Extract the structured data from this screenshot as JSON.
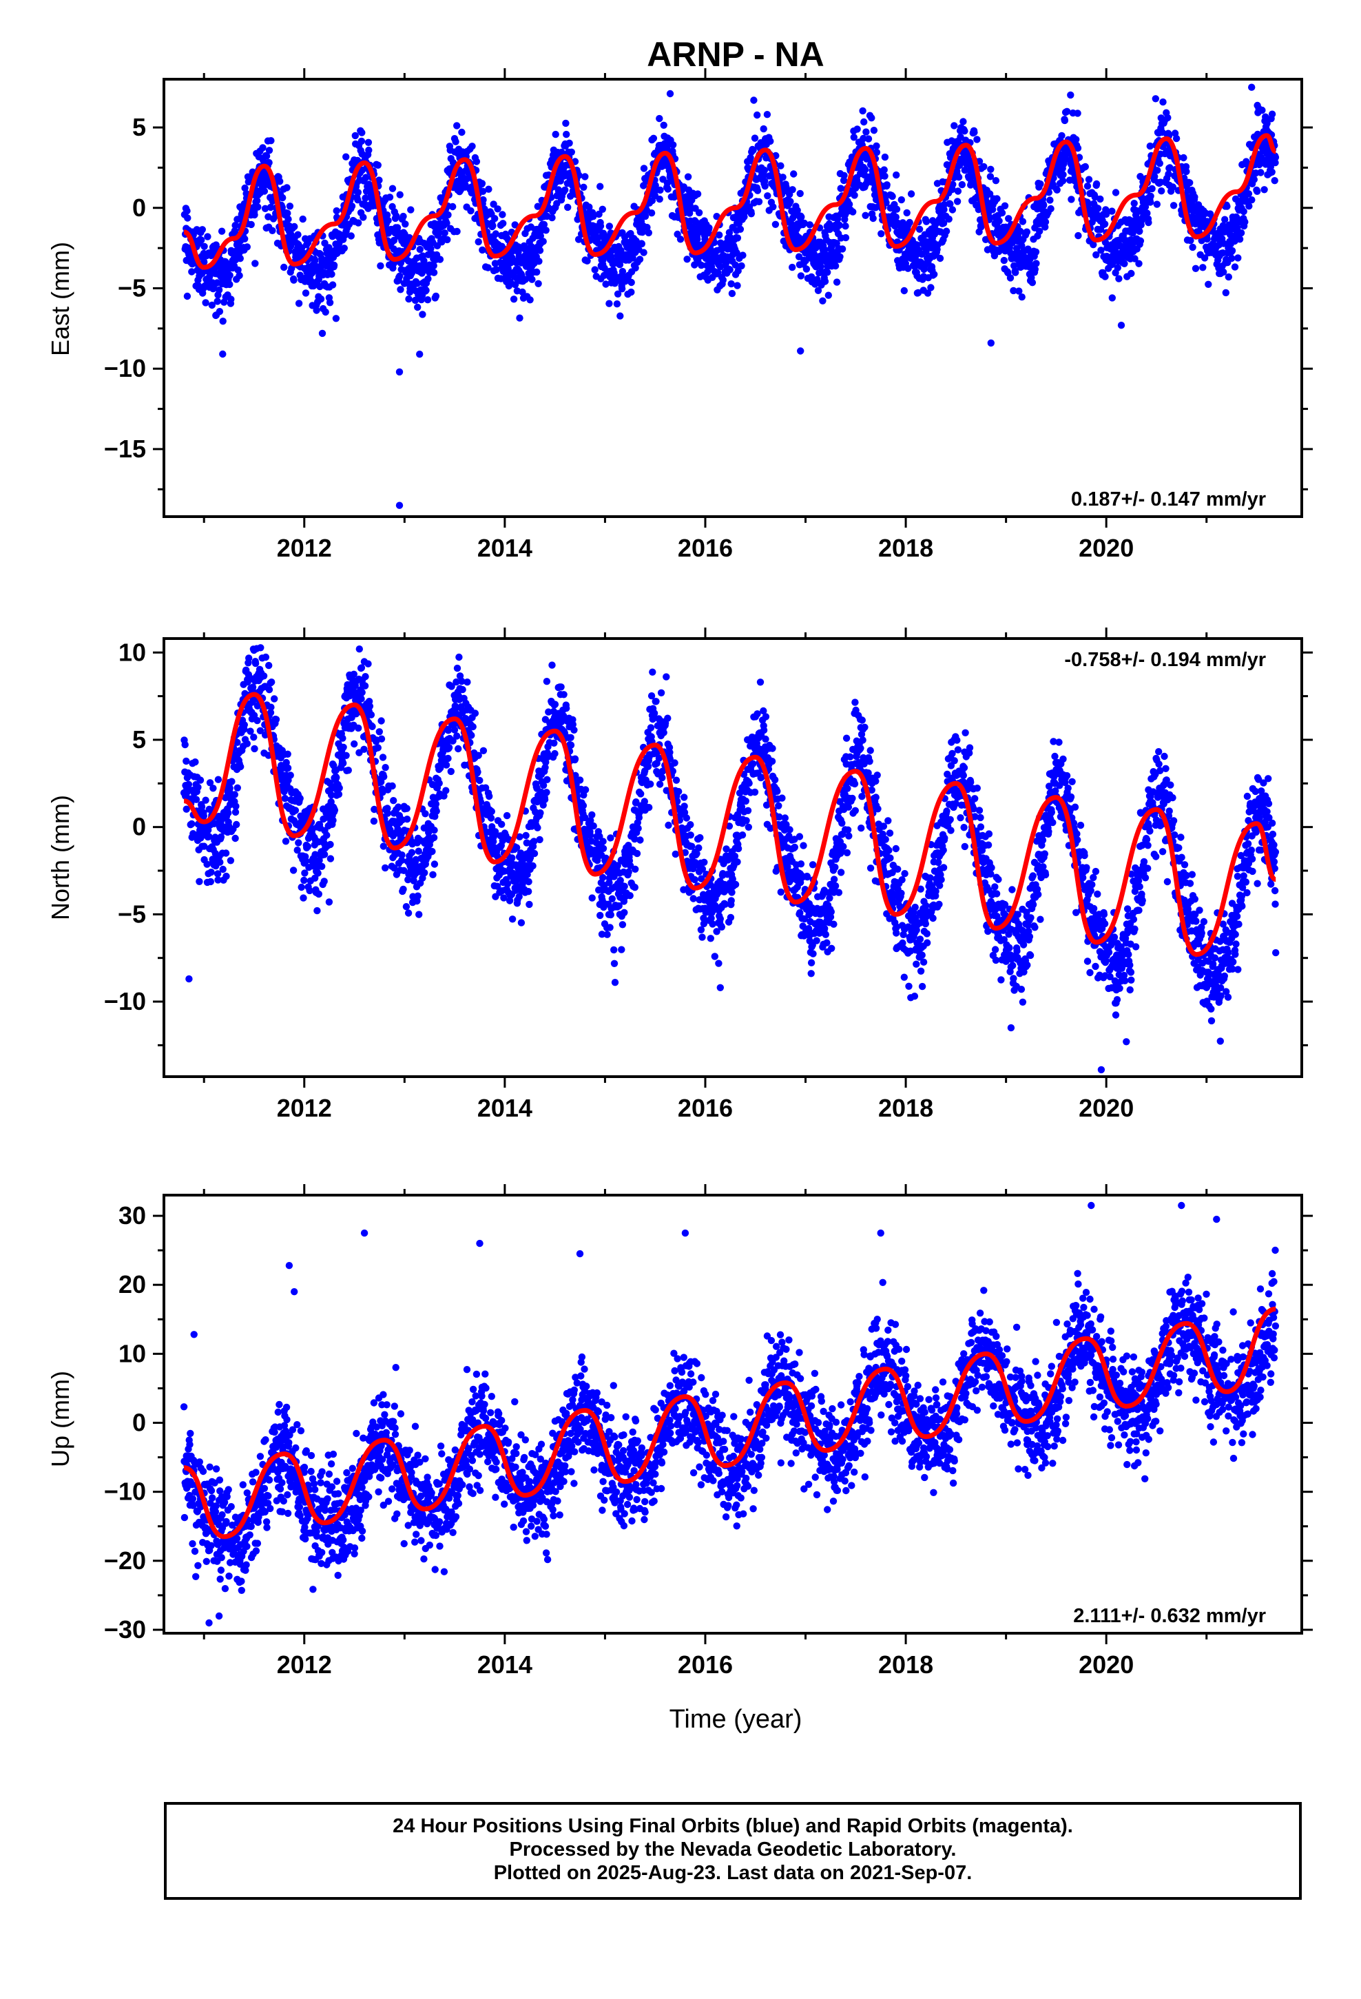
{
  "title": "ARNP - NA",
  "xlabel": "Time (year)",
  "caption": [
    "24 Hour Positions Using Final Orbits (blue) and Rapid Orbits (magenta).",
    "Processed by the Nevada Geodetic Laboratory.",
    "Plotted on 2025-Aug-23. Last data on 2021-Sep-07."
  ],
  "colors": {
    "points": "#0000ff",
    "fit": "#ff0000",
    "frame": "#000000"
  },
  "chart_data": [
    {
      "type": "scatter",
      "component": "east",
      "ylabel": "East (mm)",
      "rate_text": "0.187+/- 0.147 mm/yr",
      "rate_position": "bottom-right",
      "xlim": [
        2010.6,
        2021.95
      ],
      "ylim": [
        -19.2,
        8.0
      ],
      "xticks": [
        2012,
        2014,
        2016,
        2018,
        2020
      ],
      "yticks": [
        5,
        0,
        -5,
        -10,
        -15
      ],
      "data_start": 2010.8,
      "data_end": 2021.69,
      "model": {
        "offset": -0.6,
        "trend_mm_per_yr": 0.187,
        "t_ref": 2016.25,
        "annual_amp": 3.0,
        "annual_peak": 0.6,
        "semiannual_amp": 0.6,
        "noise_sd": 1.2
      },
      "fit_curve": [
        [
          2010.8,
          -1.5
        ],
        [
          2011.0,
          -3.7
        ],
        [
          2011.3,
          -1.9
        ],
        [
          2011.6,
          2.6
        ],
        [
          2011.9,
          -3.5
        ],
        [
          2012.3,
          -1.0
        ],
        [
          2012.6,
          2.8
        ],
        [
          2012.9,
          -3.2
        ],
        [
          2013.3,
          -0.5
        ],
        [
          2013.6,
          3.0
        ],
        [
          2013.9,
          -3.0
        ],
        [
          2014.3,
          -0.5
        ],
        [
          2014.6,
          3.2
        ],
        [
          2014.9,
          -2.9
        ],
        [
          2015.3,
          -0.3
        ],
        [
          2015.6,
          3.4
        ],
        [
          2015.9,
          -2.8
        ],
        [
          2016.3,
          0.0
        ],
        [
          2016.6,
          3.6
        ],
        [
          2016.9,
          -2.6
        ],
        [
          2017.3,
          0.2
        ],
        [
          2017.6,
          3.7
        ],
        [
          2017.9,
          -2.4
        ],
        [
          2018.3,
          0.4
        ],
        [
          2018.6,
          3.9
        ],
        [
          2018.9,
          -2.2
        ],
        [
          2019.3,
          0.6
        ],
        [
          2019.6,
          4.1
        ],
        [
          2019.9,
          -2.0
        ],
        [
          2020.3,
          0.8
        ],
        [
          2020.6,
          4.3
        ],
        [
          2020.9,
          -1.8
        ],
        [
          2021.3,
          1.0
        ],
        [
          2021.6,
          4.5
        ],
        [
          2021.69,
          3.5
        ]
      ],
      "outliers": [
        [
          2012.95,
          -10.2
        ],
        [
          2013.15,
          -9.1
        ],
        [
          2012.95,
          -18.5
        ],
        [
          2016.95,
          -8.9
        ],
        [
          2018.85,
          -8.4
        ],
        [
          2020.15,
          -7.3
        ],
        [
          2021.45,
          7.5
        ],
        [
          2015.65,
          7.1
        ]
      ]
    },
    {
      "type": "scatter",
      "component": "north",
      "ylabel": "North (mm)",
      "rate_text": "-0.758+/- 0.194 mm/yr",
      "rate_position": "top-right",
      "xlim": [
        2010.6,
        2021.95
      ],
      "ylim": [
        -14.3,
        10.8
      ],
      "xticks": [
        2012,
        2014,
        2016,
        2018,
        2020
      ],
      "yticks": [
        10,
        5,
        0,
        -5,
        -10
      ],
      "data_start": 2010.8,
      "data_end": 2021.69,
      "model": {
        "offset": -0.5,
        "trend_mm_per_yr": -0.758,
        "t_ref": 2016.25,
        "annual_amp": 4.6,
        "annual_peak": 0.55,
        "semiannual_amp": 0.9,
        "noise_sd": 1.3
      },
      "fit_curve": [
        [
          2010.8,
          1.5
        ],
        [
          2011.0,
          0.3
        ],
        [
          2011.5,
          7.6
        ],
        [
          2011.9,
          -0.5
        ],
        [
          2012.5,
          7.0
        ],
        [
          2012.9,
          -1.2
        ],
        [
          2013.5,
          6.2
        ],
        [
          2013.9,
          -2.0
        ],
        [
          2014.5,
          5.5
        ],
        [
          2014.9,
          -2.7
        ],
        [
          2015.5,
          4.7
        ],
        [
          2015.9,
          -3.5
        ],
        [
          2016.5,
          4.0
        ],
        [
          2016.9,
          -4.3
        ],
        [
          2017.5,
          3.2
        ],
        [
          2017.9,
          -5.0
        ],
        [
          2018.5,
          2.5
        ],
        [
          2018.9,
          -5.8
        ],
        [
          2019.5,
          1.7
        ],
        [
          2019.9,
          -6.6
        ],
        [
          2020.5,
          1.0
        ],
        [
          2020.9,
          -7.3
        ],
        [
          2021.5,
          0.2
        ],
        [
          2021.69,
          -3.0
        ]
      ],
      "outliers": [
        [
          2010.85,
          -8.7
        ],
        [
          2015.1,
          -8.9
        ],
        [
          2016.15,
          -9.2
        ],
        [
          2019.05,
          -11.5
        ],
        [
          2019.95,
          -13.9
        ],
        [
          2020.2,
          -12.3
        ],
        [
          2021.05,
          -11.1
        ],
        [
          2012.55,
          10.2
        ],
        [
          2016.55,
          8.3
        ],
        [
          2021.69,
          -7.2
        ]
      ]
    },
    {
      "type": "scatter",
      "component": "up",
      "ylabel": "Up (mm)",
      "rate_text": "2.111+/- 0.632 mm/yr",
      "rate_position": "bottom-right",
      "xlim": [
        2010.6,
        2021.95
      ],
      "ylim": [
        -30.5,
        33.0
      ],
      "xticks": [
        2012,
        2014,
        2016,
        2018,
        2020
      ],
      "yticks": [
        30,
        20,
        10,
        0,
        -10,
        -20,
        -30
      ],
      "data_start": 2010.8,
      "data_end": 2021.69,
      "model": {
        "offset": -1.5,
        "trend_mm_per_yr": 2.111,
        "t_ref": 2016.25,
        "annual_amp": 5.5,
        "annual_peak": 0.78,
        "semiannual_amp": 1.0,
        "noise_sd": 3.6
      },
      "fit_curve": [
        [
          2010.8,
          -6.5
        ],
        [
          2011.2,
          -16.5
        ],
        [
          2011.8,
          -4.5
        ],
        [
          2012.2,
          -14.5
        ],
        [
          2012.8,
          -2.5
        ],
        [
          2013.2,
          -12.5
        ],
        [
          2013.8,
          -0.5
        ],
        [
          2014.2,
          -10.5
        ],
        [
          2014.8,
          1.8
        ],
        [
          2015.2,
          -8.5
        ],
        [
          2015.8,
          3.8
        ],
        [
          2016.2,
          -6.2
        ],
        [
          2016.8,
          5.8
        ],
        [
          2017.2,
          -4.0
        ],
        [
          2017.8,
          7.8
        ],
        [
          2018.2,
          -2.0
        ],
        [
          2018.8,
          10.0
        ],
        [
          2019.2,
          0.2
        ],
        [
          2019.8,
          12.2
        ],
        [
          2020.2,
          2.4
        ],
        [
          2020.8,
          14.4
        ],
        [
          2021.2,
          4.5
        ],
        [
          2021.69,
          16.5
        ]
      ],
      "outliers": [
        [
          2011.05,
          -29.0
        ],
        [
          2011.15,
          -28.0
        ],
        [
          2012.6,
          27.5
        ],
        [
          2013.75,
          26.0
        ],
        [
          2014.75,
          24.5
        ],
        [
          2015.8,
          27.5
        ],
        [
          2017.75,
          27.5
        ],
        [
          2019.85,
          31.5
        ],
        [
          2020.75,
          31.5
        ],
        [
          2021.1,
          29.5
        ],
        [
          2011.85,
          22.8
        ],
        [
          2011.9,
          19.0
        ],
        [
          2010.9,
          12.8
        ]
      ]
    }
  ]
}
